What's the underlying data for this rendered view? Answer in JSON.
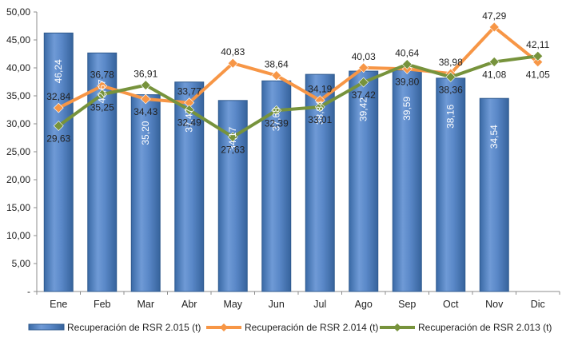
{
  "chart_data": {
    "type": "bar",
    "categories": [
      "Ene",
      "Feb",
      "Mar",
      "Abr",
      "May",
      "Jun",
      "Jul",
      "Ago",
      "Sep",
      "Oct",
      "Nov",
      "Dic"
    ],
    "ylim": [
      0,
      50
    ],
    "yticks": [
      0,
      5,
      10,
      15,
      20,
      25,
      30,
      35,
      40,
      45,
      50
    ],
    "ytick_labels": [
      "-",
      "5,00",
      "10,00",
      "15,00",
      "20,00",
      "25,00",
      "30,00",
      "35,00",
      "40,00",
      "45,00",
      "50,00"
    ],
    "grid": false,
    "legend_position": "bottom",
    "series": [
      {
        "name": "Recuperación de RSR 2.015 (t)",
        "kind": "bar",
        "color": "#4f81bd",
        "values": [
          46.24,
          42.67,
          35.2,
          37.47,
          34.17,
          37.68,
          38.84,
          39.42,
          39.59,
          38.16,
          34.54,
          null
        ],
        "labels": [
          "46,24",
          "42,67",
          "35,20",
          "37,47",
          "34,17",
          "37,68",
          "38,84",
          "39,42",
          "39,59",
          "38,16",
          "34,54",
          ""
        ]
      },
      {
        "name": "Recuperación de RSR 2.014 (t)",
        "kind": "line",
        "color": "#f79646",
        "values": [
          32.84,
          36.78,
          34.43,
          33.77,
          40.83,
          38.64,
          34.19,
          40.03,
          39.8,
          38.98,
          47.29,
          41.05
        ],
        "labels": [
          "32,84",
          "36,78",
          "34,43",
          "33,77",
          "40,83",
          "38,64",
          "34,19",
          "40,03",
          "39,80",
          "38,98",
          "47,29",
          "41,05"
        ]
      },
      {
        "name": "Recuperación de RSR 2.013 (t)",
        "kind": "line",
        "color": "#77933c",
        "values": [
          29.63,
          35.25,
          36.91,
          32.49,
          27.63,
          32.39,
          33.01,
          37.42,
          40.64,
          38.36,
          41.08,
          42.11
        ],
        "labels": [
          "29,63",
          "35,25",
          "36,91",
          "32,49",
          "27,63",
          "32,39",
          "33,01",
          "37,42",
          "40,64",
          "38,36",
          "41,08",
          "42,11"
        ]
      }
    ]
  }
}
